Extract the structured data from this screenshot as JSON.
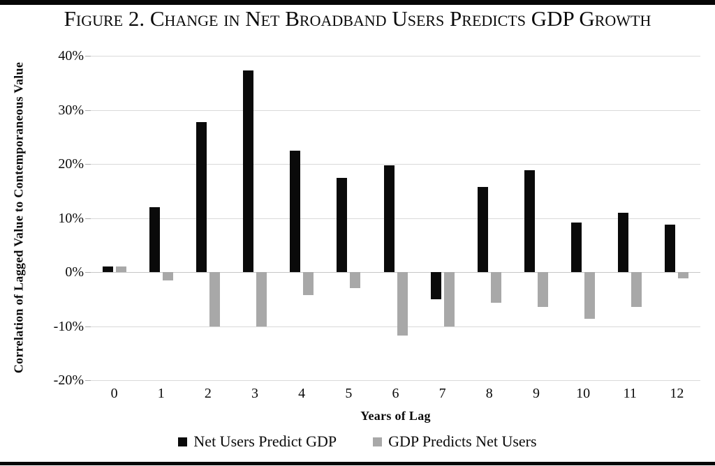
{
  "chart_data": {
    "type": "bar",
    "title": "Figure 2. Change in Net Broadband Users Predicts GDP Growth",
    "categories": [
      "0",
      "1",
      "2",
      "3",
      "4",
      "5",
      "6",
      "7",
      "8",
      "9",
      "10",
      "11",
      "12"
    ],
    "series": [
      {
        "name": "Net Users Predict GDP",
        "color": "#0a0a0a",
        "values": [
          1.0,
          12.0,
          27.7,
          37.3,
          22.4,
          17.4,
          19.8,
          -5.0,
          15.7,
          18.9,
          9.1,
          11.0,
          8.8
        ]
      },
      {
        "name": "GDP Predicts Net Users",
        "color": "#a8a8a8",
        "values": [
          1.0,
          -1.5,
          -10.0,
          -10.0,
          -4.2,
          -3.0,
          -11.7,
          -10.0,
          -5.7,
          -6.5,
          -8.7,
          -6.5,
          -1.2
        ]
      }
    ],
    "xlabel": "Years of Lag",
    "ylabel": "Correlation of Lagged Value to Contemporaneous Value",
    "ylim": [
      -20,
      40
    ],
    "y_ticks": [
      40,
      30,
      20,
      10,
      0,
      -10,
      -20
    ],
    "y_tick_suffix": "%",
    "grid": true,
    "legend_position": "bottom",
    "value_unit": "percent_correlation"
  }
}
